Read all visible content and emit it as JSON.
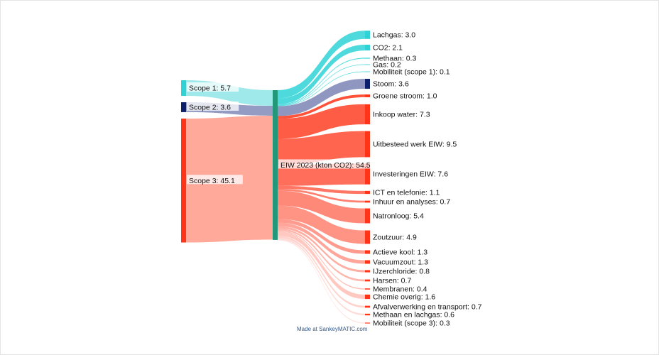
{
  "chart_data": {
    "type": "sankey",
    "units": "kton CO2",
    "sources": [
      {
        "name": "Scope 1",
        "value": 5.7,
        "color": "#2fd3d6",
        "link_color": "#9ae8ea"
      },
      {
        "name": "Scope 2",
        "value": 3.6,
        "color": "#0b1f6b",
        "link_color": "#8f97c0"
      },
      {
        "name": "Scope 3",
        "value": 45.1,
        "color": "#ff3418",
        "link_color": "#ffa496"
      }
    ],
    "hub": {
      "name": "EIW 2023 (kton CO2)",
      "value": 54.5,
      "color": "#23977a"
    },
    "targets": [
      {
        "name": "Lachgas",
        "value": 3.0,
        "source": "Scope 1"
      },
      {
        "name": "CO2",
        "value": 2.1,
        "source": "Scope 1"
      },
      {
        "name": "Methaan",
        "value": 0.3,
        "source": "Scope 1"
      },
      {
        "name": "Gas",
        "value": 0.2,
        "source": "Scope 1"
      },
      {
        "name": "Mobiliteit (scope 1)",
        "value": 0.1,
        "source": "Scope 1"
      },
      {
        "name": "Stoom",
        "value": 3.6,
        "source": "Scope 2"
      },
      {
        "name": "Groene stroom",
        "value": 1.0,
        "source": "Scope 3"
      },
      {
        "name": "Inkoop water",
        "value": 7.3,
        "source": "Scope 3"
      },
      {
        "name": "Uitbesteed werk EIW",
        "value": 9.5,
        "source": "Scope 3"
      },
      {
        "name": "Investeringen EIW",
        "value": 7.6,
        "source": "Scope 3"
      },
      {
        "name": "ICT en telefonie",
        "value": 1.1,
        "source": "Scope 3"
      },
      {
        "name": "Inhuur en analyses",
        "value": 0.7,
        "source": "Scope 3"
      },
      {
        "name": "Natronloog",
        "value": 5.4,
        "source": "Scope 3"
      },
      {
        "name": "Zoutzuur",
        "value": 4.9,
        "source": "Scope 3"
      },
      {
        "name": "Actieve kool",
        "value": 1.3,
        "source": "Scope 3"
      },
      {
        "name": "Vacuumzout",
        "value": 1.3,
        "source": "Scope 3"
      },
      {
        "name": "IJzerchloride",
        "value": 0.8,
        "source": "Scope 3"
      },
      {
        "name": "Harsen",
        "value": 0.7,
        "source": "Scope 3"
      },
      {
        "name": "Membranen",
        "value": 0.4,
        "source": "Scope 3"
      },
      {
        "name": "Chemie overig",
        "value": 1.6,
        "source": "Scope 3"
      },
      {
        "name": "Afvalverwerking en transport",
        "value": 0.7,
        "source": "Scope 3"
      },
      {
        "name": "Methaan en lachgas",
        "value": 0.6,
        "source": "Scope 3"
      },
      {
        "name": "Mobiliteit (scope 3)",
        "value": 0.3,
        "source": "Scope 3"
      }
    ]
  },
  "credit": "Made at SankeyMATIC.com"
}
